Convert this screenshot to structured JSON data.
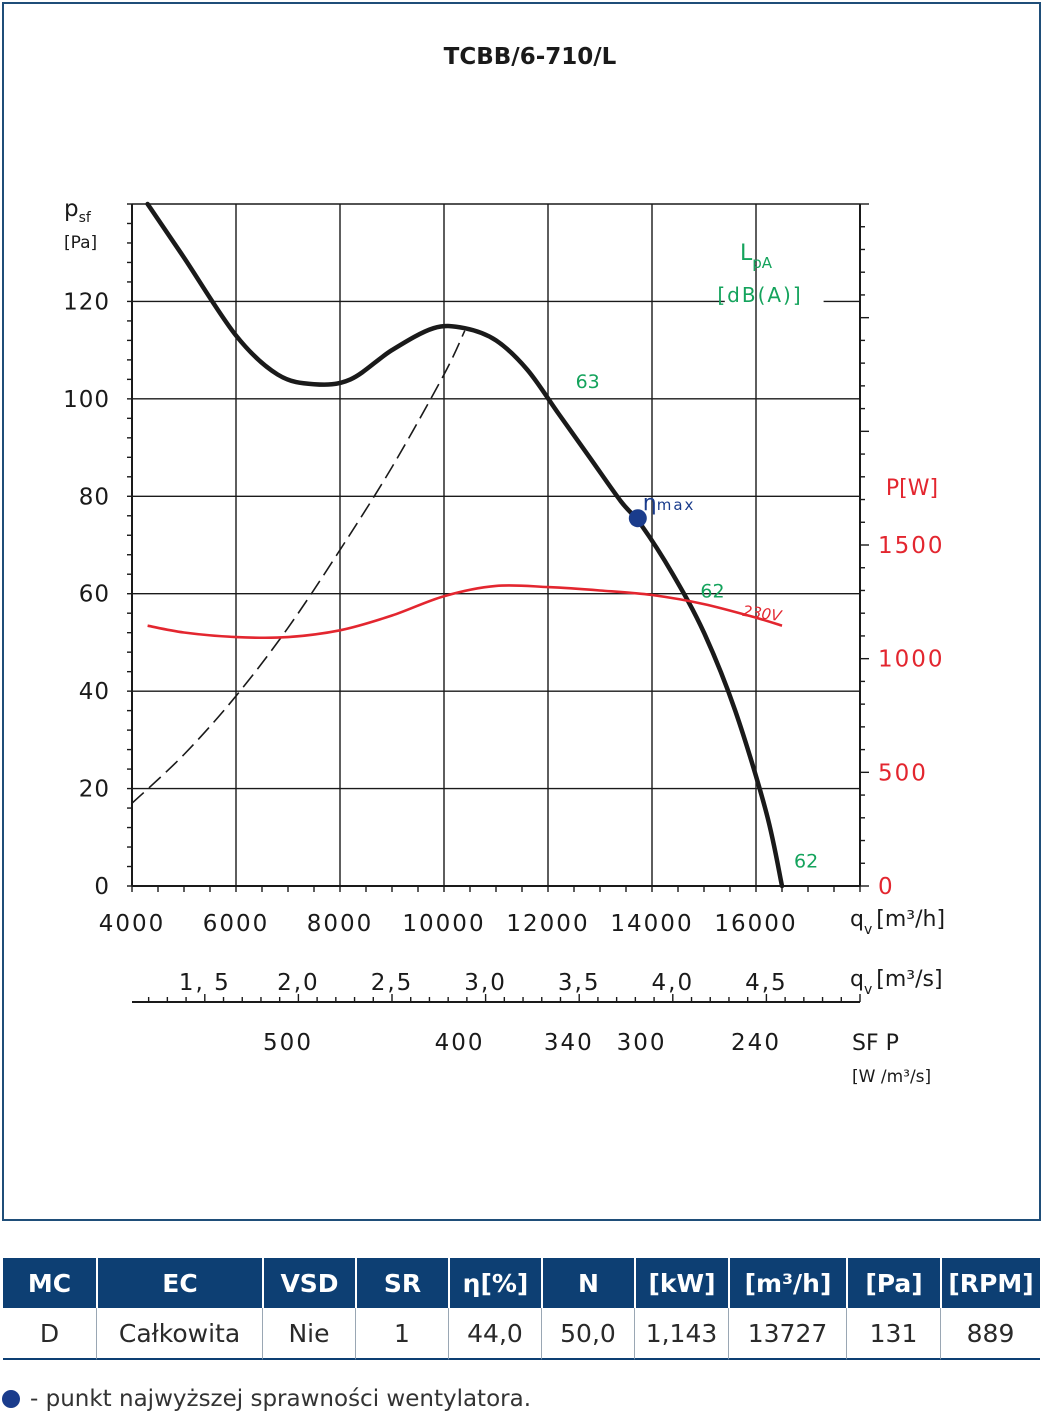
{
  "chart_data": {
    "type": "line",
    "title": "TCBB/6-710/L",
    "y_label": "p",
    "y_label_sub": "sf",
    "y_unit": "[Pa]",
    "ylim": [
      0,
      140
    ],
    "y_ticks": [
      "0",
      "20",
      "40",
      "60",
      "80",
      "100",
      "120"
    ],
    "x_label": "q",
    "x_label_sub": "v",
    "x_unit": "[m³/h]",
    "xlim": [
      4000,
      18000
    ],
    "x_ticks": [
      "4000",
      "6000",
      "8000",
      "10000",
      "12000",
      "14000",
      "16000"
    ],
    "x2_label": "q",
    "x2_label_sub": "v",
    "x2_unit": "[m³/s]",
    "x2_ticks": [
      {
        "label": "1, 5",
        "value": 1.5
      },
      {
        "label": "2,0",
        "value": 2.0
      },
      {
        "label": "2,5",
        "value": 2.5
      },
      {
        "label": "3,0",
        "value": 3.0
      },
      {
        "label": "3,5",
        "value": 3.5
      },
      {
        "label": "4,0",
        "value": 4.0
      },
      {
        "label": "4,5",
        "value": 4.5
      }
    ],
    "sfp_label": "SF P",
    "sfp_unit": "[W /m³/s]",
    "sfp_ticks": [
      {
        "label": "500",
        "q": 7000
      },
      {
        "label": "400",
        "q": 10300
      },
      {
        "label": "340",
        "q": 12400
      },
      {
        "label": "300",
        "q": 13800
      },
      {
        "label": "240",
        "q": 16000
      }
    ],
    "p_axis_label": "P[W]",
    "p_lim": [
      0,
      3000
    ],
    "p_ticks": [
      "0",
      "500",
      "1000",
      "1500"
    ],
    "lpa_label": "L",
    "lpa_label_sub": "pA",
    "lpa_unit": "[dB(A)]",
    "grid": true,
    "series": [
      {
        "role": "pressure",
        "x": [
          4300,
          5000,
          6000,
          6800,
          7500,
          8200,
          9000,
          9800,
          10400,
          11000,
          11600,
          12200,
          12800,
          13400,
          13800,
          14400,
          15000,
          15600,
          16200,
          16500
        ],
        "y": [
          140,
          129,
          113,
          105,
          103,
          104,
          110,
          114.5,
          114.5,
          112,
          106,
          97,
          88,
          79,
          74,
          64,
          52,
          36,
          15,
          0
        ]
      },
      {
        "role": "system",
        "x": [
          4000,
          5000,
          6000,
          7000,
          8000,
          9000,
          10000,
          10400
        ],
        "y": [
          17,
          27,
          39,
          53,
          69,
          86,
          105,
          114
        ]
      },
      {
        "role": "power",
        "name": "230V",
        "x": [
          4300,
          5000,
          6000,
          7000,
          8000,
          9000,
          10000,
          11000,
          12000,
          13000,
          14000,
          15000,
          16000,
          16500
        ],
        "y": [
          1145,
          1115,
          1095,
          1095,
          1125,
          1190,
          1275,
          1320,
          1315,
          1300,
          1280,
          1240,
          1180,
          1145
        ]
      }
    ],
    "lpa_marks": [
      {
        "text": "63",
        "q": 12300,
        "p": 103.5
      },
      {
        "text": "62",
        "q": 14700,
        "p": 60.5
      },
      {
        "text": "62",
        "q": 16500,
        "p": 5
      }
    ],
    "eta_max": {
      "label": "η",
      "label_sub": "max",
      "q": 13727,
      "p": 75.5
    }
  },
  "table": {
    "headers": [
      "MC",
      "EC",
      "VSD",
      "SR",
      "η[%]",
      "N",
      "[kW]",
      "[m³/h]",
      "[Pa]",
      "[RPM]"
    ],
    "row": [
      "D",
      "Całkowita",
      "Nie",
      "1",
      "44,0",
      "50,0",
      "1,143",
      "13727",
      "131",
      "889"
    ]
  },
  "footnote": {
    "text": "- punkt najwyższej sprawności wentylatora."
  },
  "colors": {
    "frame": "#1f4e79",
    "table_header": "#0d3f73",
    "pressure_curve": "#1a1a1a",
    "power_curve": "#e3262f",
    "lpa": "#14a35c",
    "eta_point": "#1a3c8c"
  }
}
